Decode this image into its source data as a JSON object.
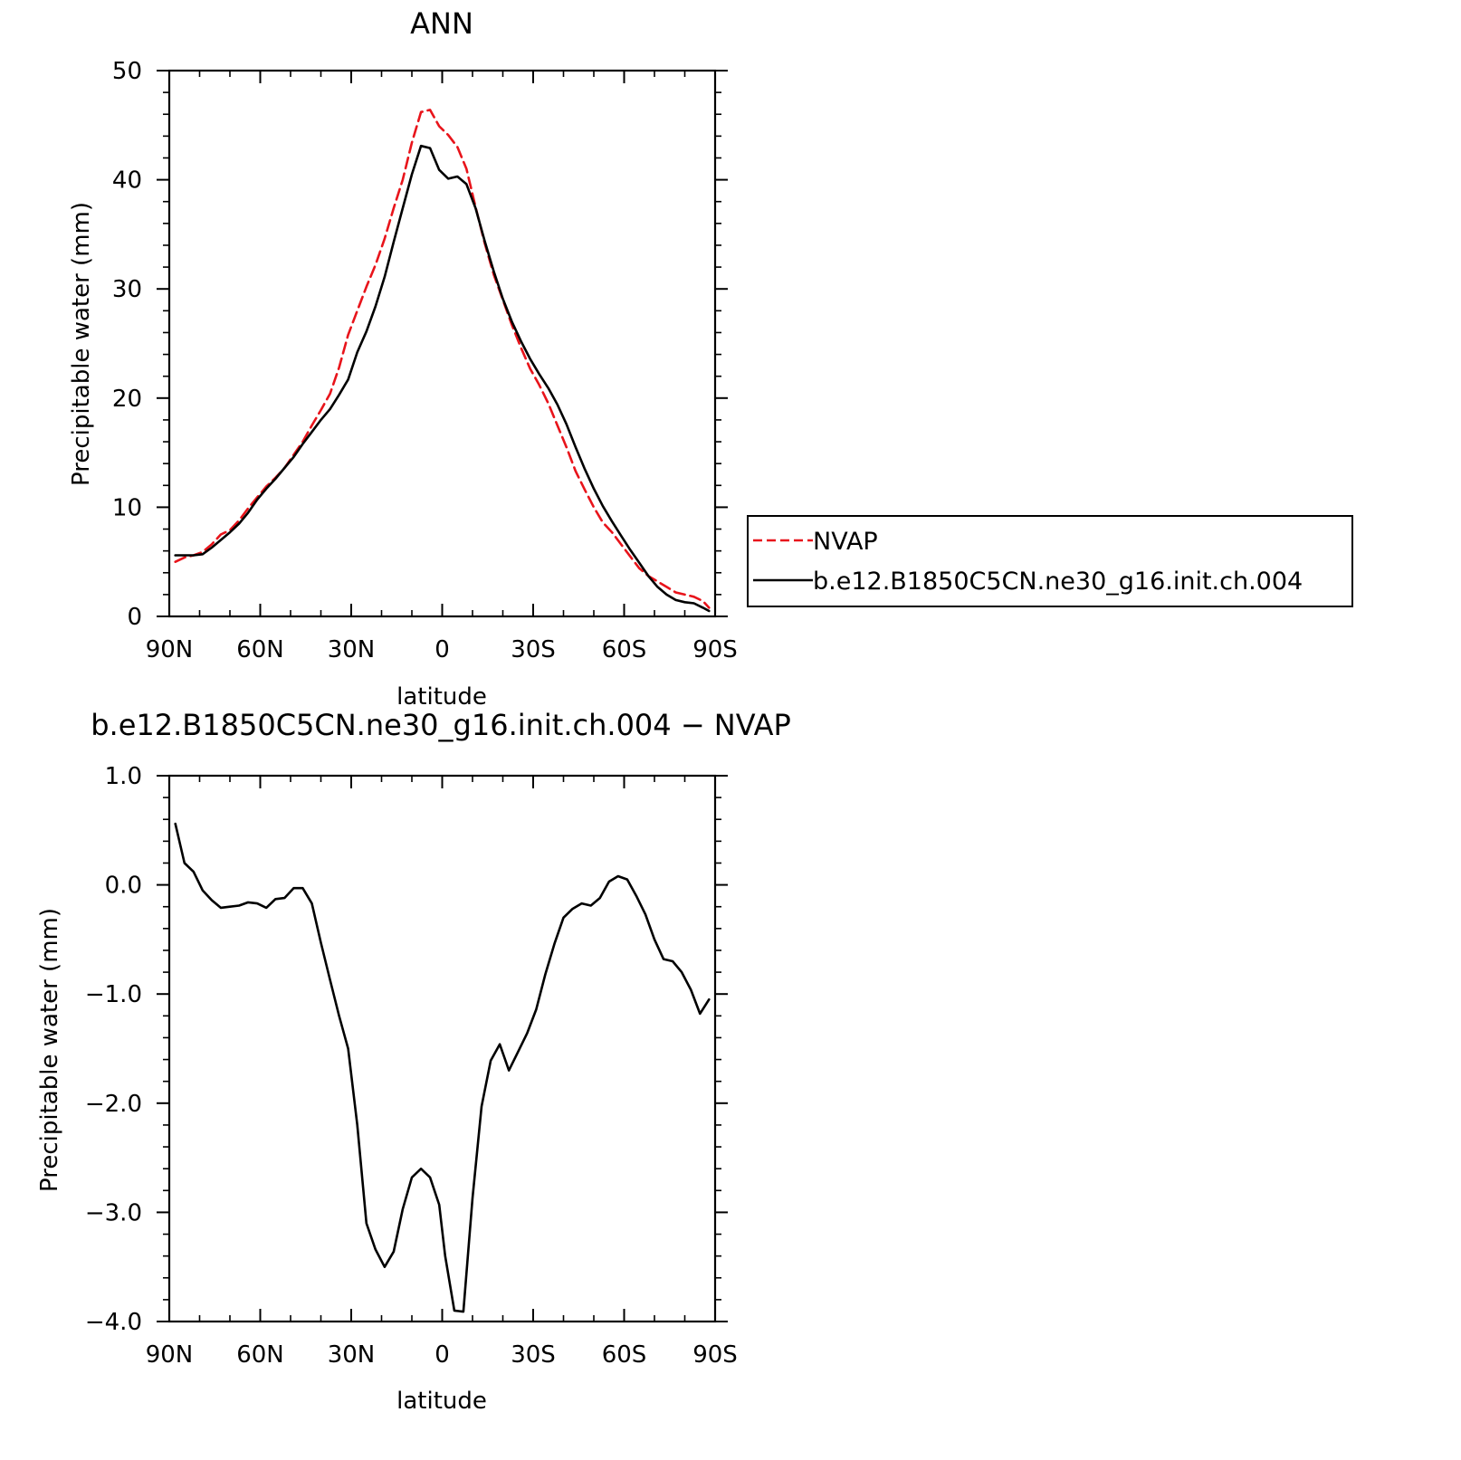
{
  "chart_data": [
    {
      "type": "line",
      "title": "ANN",
      "xlabel": "latitude",
      "ylabel": "Precipitable water (mm)",
      "xlim": [
        90,
        -90
      ],
      "ylim": [
        0,
        50
      ],
      "x_ticks": [
        {
          "value": 90,
          "label": "90N"
        },
        {
          "value": 60,
          "label": "60N"
        },
        {
          "value": 30,
          "label": "30N"
        },
        {
          "value": 0,
          "label": "0"
        },
        {
          "value": -30,
          "label": "30S"
        },
        {
          "value": -60,
          "label": "60S"
        },
        {
          "value": -90,
          "label": "90S"
        }
      ],
      "y_ticks": [
        {
          "value": 0,
          "label": "0"
        },
        {
          "value": 10,
          "label": "10"
        },
        {
          "value": 20,
          "label": "20"
        },
        {
          "value": 30,
          "label": "30"
        },
        {
          "value": 40,
          "label": "40"
        },
        {
          "value": 50,
          "label": "50"
        }
      ],
      "legend": "right",
      "grid": false,
      "series": [
        {
          "name": "NVAP",
          "color": "#e8141b",
          "dash": "dashed",
          "x": [
            88,
            85,
            82,
            79,
            76,
            73,
            70,
            67,
            64,
            61,
            58,
            55,
            52,
            49,
            46,
            43,
            40,
            37,
            34,
            31,
            28,
            25,
            22,
            19,
            16,
            13,
            10,
            7,
            4,
            1,
            -2,
            -5,
            -8,
            -11,
            -14,
            -17,
            -20,
            -23,
            -26,
            -29,
            -32,
            -35,
            -38,
            -41,
            -44,
            -47,
            -50,
            -53,
            -56,
            -59,
            -62,
            -65,
            -68,
            -71,
            -74,
            -77,
            -80,
            -83,
            -86,
            -88
          ],
          "y": [
            5.0,
            5.4,
            5.6,
            5.9,
            6.6,
            7.5,
            7.9,
            8.8,
            9.9,
            10.9,
            11.9,
            12.7,
            13.6,
            14.8,
            16.0,
            17.5,
            18.9,
            20.4,
            22.8,
            25.8,
            28.0,
            30.2,
            32.2,
            34.6,
            37.4,
            40.0,
            43.4,
            46.2,
            46.4,
            44.9,
            44.1,
            43.0,
            41.0,
            37.5,
            34.2,
            31.3,
            29.0,
            26.7,
            24.6,
            22.7,
            21.2,
            19.5,
            17.5,
            15.5,
            13.3,
            11.6,
            10.0,
            8.6,
            7.7,
            6.6,
            5.5,
            4.4,
            3.7,
            3.2,
            2.7,
            2.2,
            2.0,
            1.8,
            1.4,
            0.8
          ]
        },
        {
          "name": "b.e12.B1850C5CN.ne30_g16.init.ch.004",
          "color": "#000000",
          "dash": "solid",
          "x": [
            88,
            85,
            82,
            79,
            76,
            73,
            70,
            67,
            64,
            61,
            58,
            55,
            52,
            49,
            46,
            43,
            40,
            37,
            34,
            31,
            28,
            25,
            22,
            19,
            16,
            13,
            10,
            7,
            4,
            1,
            -2,
            -5,
            -8,
            -11,
            -14,
            -17,
            -20,
            -23,
            -26,
            -29,
            -32,
            -35,
            -38,
            -41,
            -44,
            -47,
            -50,
            -53,
            -56,
            -59,
            -62,
            -65,
            -68,
            -71,
            -74,
            -77,
            -80,
            -83,
            -86,
            -88
          ],
          "y": [
            5.6,
            5.6,
            5.6,
            5.7,
            6.3,
            7.0,
            7.7,
            8.5,
            9.5,
            10.7,
            11.7,
            12.6,
            13.6,
            14.6,
            15.8,
            16.9,
            18.0,
            19.0,
            20.3,
            21.7,
            24.2,
            26.1,
            28.4,
            31.1,
            34.3,
            37.4,
            40.5,
            43.1,
            42.9,
            40.9,
            40.1,
            40.3,
            39.6,
            37.4,
            34.4,
            31.6,
            29.1,
            27.0,
            25.2,
            23.6,
            22.2,
            20.9,
            19.4,
            17.6,
            15.5,
            13.5,
            11.7,
            10.1,
            8.7,
            7.4,
            6.1,
            4.9,
            3.7,
            2.7,
            2.0,
            1.5,
            1.3,
            1.2,
            0.8,
            0.5
          ]
        }
      ]
    },
    {
      "type": "line",
      "title": "b.e12.B1850C5CN.ne30_g16.init.ch.004 − NVAP",
      "xlabel": "latitude",
      "ylabel": "Precipitable water (mm)",
      "xlim": [
        90,
        -90
      ],
      "ylim": [
        -4.0,
        1.0
      ],
      "x_ticks": [
        {
          "value": 90,
          "label": "90N"
        },
        {
          "value": 60,
          "label": "60N"
        },
        {
          "value": 30,
          "label": "30N"
        },
        {
          "value": 0,
          "label": "0"
        },
        {
          "value": -30,
          "label": "30S"
        },
        {
          "value": -60,
          "label": "60S"
        },
        {
          "value": -90,
          "label": "90S"
        }
      ],
      "y_ticks": [
        {
          "value": 1.0,
          "label": "1.0"
        },
        {
          "value": 0.0,
          "label": "0.0"
        },
        {
          "value": -1.0,
          "label": "−1.0"
        },
        {
          "value": -2.0,
          "label": "−2.0"
        },
        {
          "value": -3.0,
          "label": "−3.0"
        },
        {
          "value": -4.0,
          "label": "−4.0"
        }
      ],
      "grid": false,
      "series": [
        {
          "color": "#000000",
          "dash": "solid",
          "x": [
            88,
            85,
            82,
            79,
            76,
            73,
            70,
            67,
            64,
            61,
            58,
            55,
            52,
            49,
            46,
            43,
            40,
            37,
            34,
            31,
            28,
            25,
            22,
            19,
            16,
            13,
            10,
            7,
            4,
            1,
            -1,
            -4,
            -7,
            -10,
            -13,
            -16,
            -19,
            -22,
            -25,
            -28,
            -31,
            -34,
            -37,
            -40,
            -43,
            -46,
            -49,
            -52,
            -55,
            -58,
            -61,
            -64,
            -67,
            -70,
            -73,
            -76,
            -79,
            -82,
            -85,
            -88
          ],
          "y": [
            0.56,
            0.2,
            0.12,
            -0.05,
            -0.14,
            -0.21,
            -0.2,
            -0.19,
            -0.16,
            -0.17,
            -0.21,
            -0.13,
            -0.12,
            -0.03,
            -0.03,
            -0.17,
            -0.53,
            -0.87,
            -1.2,
            -1.5,
            -2.2,
            -3.1,
            -3.34,
            -3.5,
            -3.36,
            -2.97,
            -2.68,
            -2.6,
            -2.68,
            -2.93,
            -3.4,
            -3.9,
            -3.91,
            -2.87,
            -2.03,
            -1.61,
            -1.46,
            -1.7,
            -1.53,
            -1.36,
            -1.14,
            -0.82,
            -0.54,
            -0.3,
            -0.22,
            -0.17,
            -0.19,
            -0.12,
            0.03,
            0.08,
            0.05,
            -0.1,
            -0.27,
            -0.5,
            -0.68,
            -0.7,
            -0.8,
            -0.96,
            -1.18,
            -1.05
          ]
        }
      ]
    }
  ]
}
